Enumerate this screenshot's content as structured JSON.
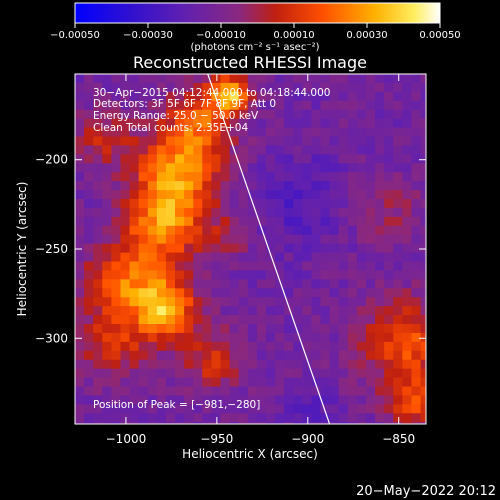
{
  "chart_data": {
    "type": "heatmap",
    "title": "Reconstructed RHESSI Image",
    "xlabel": "Heliocentric X (arcsec)",
    "ylabel": "Heliocentric Y (arcsec)",
    "xlim": [
      -1028,
      -835
    ],
    "ylim": [
      -348,
      -152
    ],
    "xticks": [
      {
        "value": -1000,
        "label": "−1000"
      },
      {
        "value": -950,
        "label": "−950"
      },
      {
        "value": -900,
        "label": "−900"
      },
      {
        "value": -850,
        "label": "−850"
      }
    ],
    "yticks": [
      {
        "value": -200,
        "label": "−200"
      },
      {
        "value": -250,
        "label": "−250"
      },
      {
        "value": -300,
        "label": "−300"
      }
    ],
    "colorbar": {
      "range": [
        -0.0005,
        0.0005
      ],
      "tick_labels": [
        "−0.00050",
        "−0.00030",
        "−0.00010",
        "0.00010",
        "0.00030",
        "0.00050"
      ],
      "tick_values": [
        -0.0005,
        -0.0003,
        -0.0001,
        0.0001,
        0.0003,
        0.0005
      ],
      "unit_label": "(photons cm⁻² s⁻¹ asec⁻²)",
      "colors": [
        "#0000ff",
        "#5020c0",
        "#8030a0",
        "#c02010",
        "#ff5000",
        "#ffa000",
        "#ffe040",
        "#ffffff"
      ]
    },
    "annotations": {
      "time_range": "30−Apr−2015 04:12:44.000 to 04:18:44.000",
      "detectors": "Detectors: 3F 5F 6F 7F 8F 9F, Att 0",
      "energy": "Energy Range: 25.0 − 50.0 keV",
      "clean": "Clean    Total counts: 2.35E+04",
      "peak": "Position of Peak = [−981,−280]"
    },
    "peak": {
      "x": -981,
      "y": -280
    },
    "limb_line": [
      {
        "x": -955,
        "y": -152
      },
      {
        "x": -888,
        "y": -348
      }
    ],
    "hotspots": [
      {
        "x": -975,
        "y": -205,
        "amp": 0.0004,
        "r": 16
      },
      {
        "x": -982,
        "y": -235,
        "amp": 0.00038,
        "r": 15
      },
      {
        "x": -981,
        "y": -280,
        "amp": 0.00046,
        "r": 12
      },
      {
        "x": -1005,
        "y": -265,
        "amp": 0.00032,
        "r": 14
      },
      {
        "x": -960,
        "y": -175,
        "amp": 0.0003,
        "r": 14
      },
      {
        "x": -945,
        "y": -160,
        "amp": 0.00044,
        "r": 7
      },
      {
        "x": -1010,
        "y": -300,
        "amp": 0.00022,
        "r": 15
      },
      {
        "x": -955,
        "y": -310,
        "amp": 0.00022,
        "r": 12
      },
      {
        "x": -1015,
        "y": -185,
        "amp": 0.00018,
        "r": 12
      },
      {
        "x": -945,
        "y": -240,
        "amp": 0.00012,
        "r": 10
      },
      {
        "x": -848,
        "y": -300,
        "amp": 0.0003,
        "r": 18
      },
      {
        "x": -845,
        "y": -335,
        "amp": 0.00026,
        "r": 10
      },
      {
        "x": -860,
        "y": -225,
        "amp": 0.00012,
        "r": 14
      },
      {
        "x": -905,
        "y": -220,
        "amp": -0.0001,
        "r": 18
      },
      {
        "x": -900,
        "y": -340,
        "amp": -8e-05,
        "r": 10
      }
    ]
  },
  "footer": {
    "datetime": "20−May−2022 20:12"
  }
}
